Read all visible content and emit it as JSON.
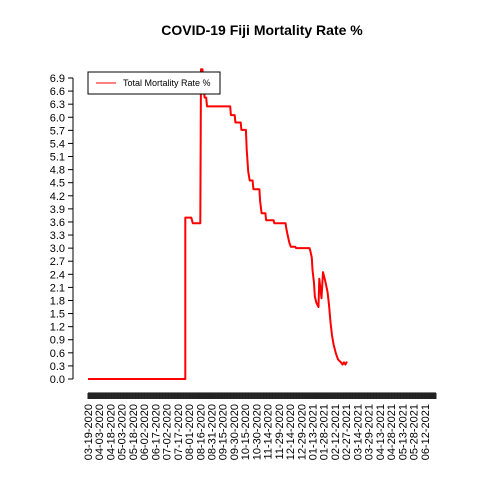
{
  "chart_data": {
    "type": "line",
    "title": "COVID-19 Fiji Mortality Rate %",
    "xlabel": "",
    "ylabel": "",
    "ylim": [
      0,
      7.1
    ],
    "y_ticks": [
      "0.0",
      "0.3",
      "0.6",
      "0.9",
      "1.2",
      "1.5",
      "1.8",
      "2.1",
      "2.4",
      "2.7",
      "3.0",
      "3.3",
      "3.6",
      "3.9",
      "4.2",
      "4.5",
      "4.8",
      "5.1",
      "5.4",
      "5.7",
      "6.0",
      "6.3",
      "6.6",
      "6.9"
    ],
    "x_range": [
      "03-19-2020",
      "06-27-2021"
    ],
    "x_tick_labels": [
      "03-19-2020",
      "04-03-2020",
      "04-18-2020",
      "05-03-2020",
      "05-18-2020",
      "06-02-2020",
      "06-17-2020",
      "07-02-2020",
      "07-17-2020",
      "08-01-2020",
      "08-16-2020",
      "08-31-2020",
      "09-15-2020",
      "09-30-2020",
      "10-15-2020",
      "10-30-2020",
      "11-14-2020",
      "11-29-2020",
      "12-14-2020",
      "12-29-2020",
      "01-13-2021",
      "01-28-2021",
      "02-12-2021",
      "02-27-2021",
      "03-14-2021",
      "03-29-2021",
      "04-13-2021",
      "04-28-2021",
      "05-13-2021",
      "05-28-2021",
      "06-12-2021"
    ],
    "legend": {
      "placement": "top-left",
      "entries": [
        "Total Mortality Rate %"
      ]
    },
    "grid": false,
    "series": [
      {
        "name": "Total Mortality Rate %",
        "color": "#ff0000",
        "points": [
          [
            "03-19-2020",
            0.0
          ],
          [
            "07-27-2020",
            0.0
          ],
          [
            "07-27-2020",
            3.7
          ],
          [
            "08-04-2020",
            3.7
          ],
          [
            "08-06-2020",
            3.57
          ],
          [
            "08-16-2020",
            3.57
          ],
          [
            "08-17-2020",
            7.1
          ],
          [
            "08-19-2020",
            7.1
          ],
          [
            "08-20-2020",
            6.7
          ],
          [
            "08-22-2020",
            6.45
          ],
          [
            "08-24-2020",
            6.45
          ],
          [
            "08-25-2020",
            6.25
          ],
          [
            "09-25-2020",
            6.25
          ],
          [
            "09-26-2020",
            6.05
          ],
          [
            "10-01-2020",
            6.05
          ],
          [
            "10-02-2020",
            5.88
          ],
          [
            "10-09-2020",
            5.88
          ],
          [
            "10-10-2020",
            5.71
          ],
          [
            "10-16-2020",
            5.71
          ],
          [
            "10-17-2020",
            5.26
          ],
          [
            "10-19-2020",
            4.76
          ],
          [
            "10-21-2020",
            4.55
          ],
          [
            "10-25-2020",
            4.55
          ],
          [
            "10-26-2020",
            4.35
          ],
          [
            "11-03-2020",
            4.35
          ],
          [
            "11-04-2020",
            4.08
          ],
          [
            "11-06-2020",
            3.8
          ],
          [
            "11-11-2020",
            3.8
          ],
          [
            "11-12-2020",
            3.64
          ],
          [
            "11-22-2020",
            3.64
          ],
          [
            "11-23-2020",
            3.57
          ],
          [
            "12-08-2020",
            3.57
          ],
          [
            "12-09-2020",
            3.45
          ],
          [
            "12-11-2020",
            3.28
          ],
          [
            "12-13-2020",
            3.13
          ],
          [
            "12-15-2020",
            3.03
          ],
          [
            "12-21-2020",
            3.03
          ],
          [
            "12-22-2020",
            3.0
          ],
          [
            "01-09-2021",
            3.0
          ],
          [
            "01-10-2021",
            2.94
          ],
          [
            "01-12-2021",
            2.78
          ],
          [
            "01-13-2021",
            2.5
          ],
          [
            "01-15-2021",
            2.2
          ],
          [
            "01-16-2021",
            1.9
          ],
          [
            "01-18-2021",
            1.75
          ],
          [
            "01-21-2021",
            1.65
          ],
          [
            "01-22-2021",
            2.3
          ],
          [
            "01-25-2021",
            1.85
          ],
          [
            "01-27-2021",
            2.45
          ],
          [
            "01-30-2021",
            2.25
          ],
          [
            "02-02-2021",
            2.0
          ],
          [
            "02-04-2021",
            1.7
          ],
          [
            "02-06-2021",
            1.3
          ],
          [
            "02-08-2021",
            1.0
          ],
          [
            "02-10-2021",
            0.8
          ],
          [
            "02-13-2021",
            0.6
          ],
          [
            "02-16-2021",
            0.45
          ],
          [
            "02-20-2021",
            0.38
          ],
          [
            "02-22-2021",
            0.33
          ],
          [
            "02-24-2021",
            0.38
          ],
          [
            "02-26-2021",
            0.33
          ],
          [
            "02-28-2021",
            0.4
          ]
        ]
      }
    ]
  }
}
